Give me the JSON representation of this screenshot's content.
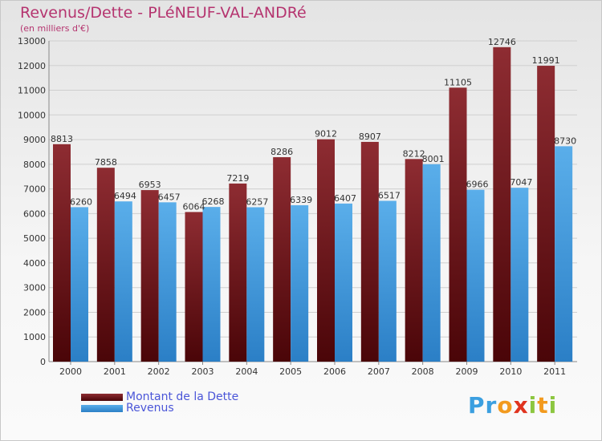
{
  "header": {
    "title": "Revenus/Dette - PLéNEUF-VAL-ANDRé",
    "subtitle": "(en milliers d'€)"
  },
  "chart_data": {
    "type": "bar",
    "title": "Revenus/Dette - PLéNEUF-VAL-ANDRé",
    "subtitle": "(en milliers d'€)",
    "categories": [
      "2000",
      "2001",
      "2002",
      "2003",
      "2004",
      "2005",
      "2006",
      "2007",
      "2008",
      "2009",
      "2010",
      "2011"
    ],
    "series": [
      {
        "name": "Montant de la Dette",
        "color": "#7a1a1f",
        "values": [
          8813,
          7858,
          6953,
          6064,
          7219,
          8286,
          9012,
          8907,
          8212,
          11105,
          12746,
          11991
        ]
      },
      {
        "name": "Revenus",
        "color": "#4aa3e0",
        "values": [
          6260,
          6494,
          6457,
          6268,
          6257,
          6339,
          6407,
          6517,
          8001,
          6966,
          7047,
          8730
        ]
      }
    ],
    "ylim": [
      0,
      13000
    ],
    "yticks": [
      0,
      1000,
      2000,
      3000,
      4000,
      5000,
      6000,
      7000,
      8000,
      9000,
      10000,
      11000,
      12000,
      13000
    ],
    "grid": true,
    "legend_position": "bottom-left"
  },
  "logo": {
    "letters": [
      "P",
      "r",
      "o",
      "x",
      "i",
      "t",
      "i"
    ],
    "colors": [
      "#3b9fe0",
      "#3b9fe0",
      "#f29a1e",
      "#e0331e",
      "#8cc63f",
      "#f29a1e",
      "#8cc63f"
    ]
  }
}
